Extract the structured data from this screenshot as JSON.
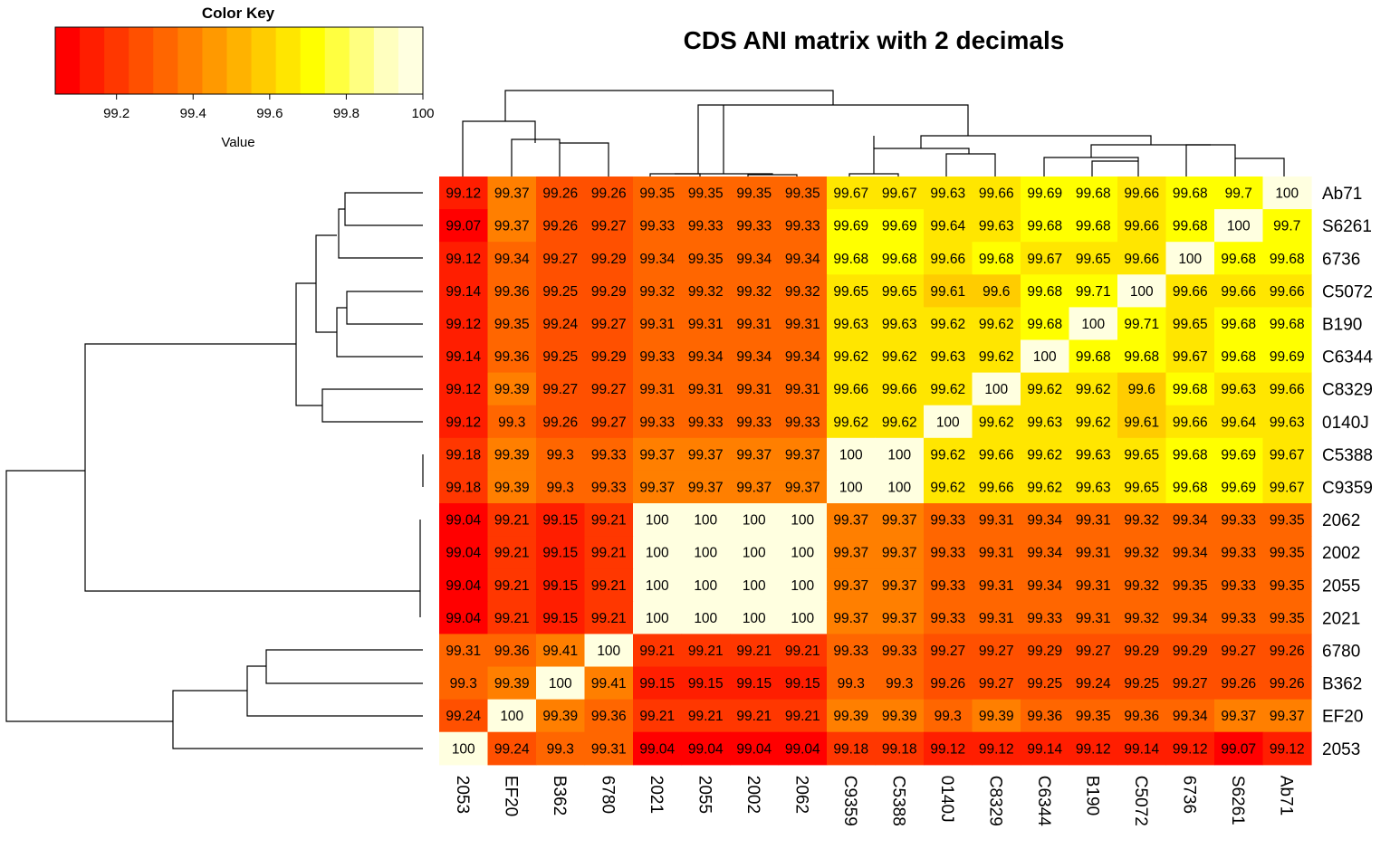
{
  "chart_data": {
    "type": "heatmap",
    "title": "CDS ANI matrix with 2 decimals",
    "color_key": {
      "title": "Color Key",
      "xlabel": "Value",
      "range": [
        99.04,
        100
      ],
      "ticks": [
        99.2,
        99.4,
        99.6,
        99.8,
        100
      ],
      "tick_labels": [
        "99.2",
        "99.4",
        "99.6",
        "99.8",
        "100"
      ],
      "palette_low_to_high": [
        "#ff0000",
        "#ff1e00",
        "#ff3700",
        "#ff5000",
        "#ff6600",
        "#ff7f00",
        "#ff9900",
        "#ffb200",
        "#ffcc00",
        "#ffe600",
        "#ffff00",
        "#ffff40",
        "#ffff80",
        "#ffffbf",
        "#ffffe0"
      ]
    },
    "columns": [
      "2053",
      "EF20",
      "B362",
      "6780",
      "2021",
      "2055",
      "2002",
      "2062",
      "C9359",
      "C5388",
      "0140J",
      "C8329",
      "C6344",
      "B190",
      "C5072",
      "6736",
      "S6261",
      "Ab71"
    ],
    "rows": [
      "Ab71",
      "S6261",
      "6736",
      "C5072",
      "B190",
      "C6344",
      "C8329",
      "0140J",
      "C5388",
      "C9359",
      "2062",
      "2002",
      "2055",
      "2021",
      "6780",
      "B362",
      "EF20",
      "2053"
    ],
    "cells": [
      [
        "99.12",
        "99.37",
        "99.26",
        "99.26",
        "99.35",
        "99.35",
        "99.35",
        "99.35",
        "99.67",
        "99.67",
        "99.63",
        "99.66",
        "99.69",
        "99.68",
        "99.66",
        "99.68",
        "99.7",
        "100"
      ],
      [
        "99.07",
        "99.37",
        "99.26",
        "99.27",
        "99.33",
        "99.33",
        "99.33",
        "99.33",
        "99.69",
        "99.69",
        "99.64",
        "99.63",
        "99.68",
        "99.68",
        "99.66",
        "99.68",
        "100",
        "99.7"
      ],
      [
        "99.12",
        "99.34",
        "99.27",
        "99.29",
        "99.34",
        "99.35",
        "99.34",
        "99.34",
        "99.68",
        "99.68",
        "99.66",
        "99.68",
        "99.67",
        "99.65",
        "99.66",
        "100",
        "99.68",
        "99.68"
      ],
      [
        "99.14",
        "99.36",
        "99.25",
        "99.29",
        "99.32",
        "99.32",
        "99.32",
        "99.32",
        "99.65",
        "99.65",
        "99.61",
        "99.6",
        "99.68",
        "99.71",
        "100",
        "99.66",
        "99.66",
        "99.66"
      ],
      [
        "99.12",
        "99.35",
        "99.24",
        "99.27",
        "99.31",
        "99.31",
        "99.31",
        "99.31",
        "99.63",
        "99.63",
        "99.62",
        "99.62",
        "99.68",
        "100",
        "99.71",
        "99.65",
        "99.68",
        "99.68"
      ],
      [
        "99.14",
        "99.36",
        "99.25",
        "99.29",
        "99.33",
        "99.34",
        "99.34",
        "99.34",
        "99.62",
        "99.62",
        "99.63",
        "99.62",
        "100",
        "99.68",
        "99.68",
        "99.67",
        "99.68",
        "99.69"
      ],
      [
        "99.12",
        "99.39",
        "99.27",
        "99.27",
        "99.31",
        "99.31",
        "99.31",
        "99.31",
        "99.66",
        "99.66",
        "99.62",
        "100",
        "99.62",
        "99.62",
        "99.6",
        "99.68",
        "99.63",
        "99.66"
      ],
      [
        "99.12",
        "99.3",
        "99.26",
        "99.27",
        "99.33",
        "99.33",
        "99.33",
        "99.33",
        "99.62",
        "99.62",
        "100",
        "99.62",
        "99.63",
        "99.62",
        "99.61",
        "99.66",
        "99.64",
        "99.63"
      ],
      [
        "99.18",
        "99.39",
        "99.3",
        "99.33",
        "99.37",
        "99.37",
        "99.37",
        "99.37",
        "100",
        "100",
        "99.62",
        "99.66",
        "99.62",
        "99.63",
        "99.65",
        "99.68",
        "99.69",
        "99.67"
      ],
      [
        "99.18",
        "99.39",
        "99.3",
        "99.33",
        "99.37",
        "99.37",
        "99.37",
        "99.37",
        "100",
        "100",
        "99.62",
        "99.66",
        "99.62",
        "99.63",
        "99.65",
        "99.68",
        "99.69",
        "99.67"
      ],
      [
        "99.04",
        "99.21",
        "99.15",
        "99.21",
        "100",
        "100",
        "100",
        "100",
        "99.37",
        "99.37",
        "99.33",
        "99.31",
        "99.34",
        "99.31",
        "99.32",
        "99.34",
        "99.33",
        "99.35"
      ],
      [
        "99.04",
        "99.21",
        "99.15",
        "99.21",
        "100",
        "100",
        "100",
        "100",
        "99.37",
        "99.37",
        "99.33",
        "99.31",
        "99.34",
        "99.31",
        "99.32",
        "99.34",
        "99.33",
        "99.35"
      ],
      [
        "99.04",
        "99.21",
        "99.15",
        "99.21",
        "100",
        "100",
        "100",
        "100",
        "99.37",
        "99.37",
        "99.33",
        "99.31",
        "99.34",
        "99.31",
        "99.32",
        "99.35",
        "99.33",
        "99.35"
      ],
      [
        "99.04",
        "99.21",
        "99.15",
        "99.21",
        "100",
        "100",
        "100",
        "100",
        "99.37",
        "99.37",
        "99.33",
        "99.31",
        "99.33",
        "99.31",
        "99.32",
        "99.34",
        "99.33",
        "99.35"
      ],
      [
        "99.31",
        "99.36",
        "99.41",
        "100",
        "99.21",
        "99.21",
        "99.21",
        "99.21",
        "99.33",
        "99.33",
        "99.27",
        "99.27",
        "99.29",
        "99.27",
        "99.29",
        "99.29",
        "99.27",
        "99.26"
      ],
      [
        "99.3",
        "99.39",
        "100",
        "99.41",
        "99.15",
        "99.15",
        "99.15",
        "99.15",
        "99.3",
        "99.3",
        "99.26",
        "99.27",
        "99.25",
        "99.24",
        "99.25",
        "99.27",
        "99.26",
        "99.26"
      ],
      [
        "99.24",
        "100",
        "99.39",
        "99.36",
        "99.21",
        "99.21",
        "99.21",
        "99.21",
        "99.39",
        "99.39",
        "99.3",
        "99.39",
        "99.36",
        "99.35",
        "99.36",
        "99.34",
        "99.37",
        "99.37"
      ],
      [
        "100",
        "99.24",
        "99.3",
        "99.31",
        "99.04",
        "99.04",
        "99.04",
        "99.04",
        "99.18",
        "99.18",
        "99.12",
        "99.12",
        "99.14",
        "99.12",
        "99.14",
        "99.12",
        "99.07",
        "99.12"
      ]
    ]
  }
}
